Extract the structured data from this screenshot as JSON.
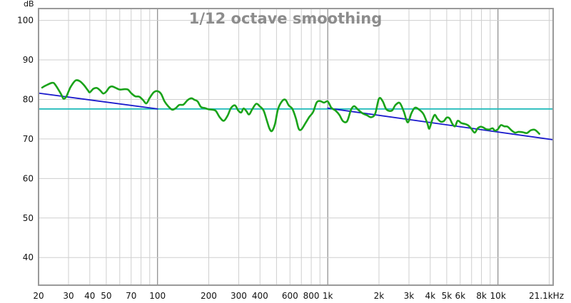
{
  "chart_data": {
    "type": "line",
    "title": "1/12 octave smoothing",
    "y_unit_label": "dB",
    "x_scale": "log",
    "xlim": [
      20,
      21100
    ],
    "ylim": [
      33,
      103
    ],
    "y_ticks": [
      40,
      50,
      60,
      70,
      80,
      90,
      100
    ],
    "x_ticks": [
      {
        "value": 20,
        "label": "20"
      },
      {
        "value": 30,
        "label": "30"
      },
      {
        "value": 40,
        "label": "40"
      },
      {
        "value": 50,
        "label": "50"
      },
      {
        "value": 70,
        "label": "70"
      },
      {
        "value": 100,
        "label": "100"
      },
      {
        "value": 200,
        "label": "200"
      },
      {
        "value": 300,
        "label": "300"
      },
      {
        "value": 400,
        "label": "400"
      },
      {
        "value": 600,
        "label": "600"
      },
      {
        "value": 800,
        "label": "800"
      },
      {
        "value": 1000,
        "label": "1k"
      },
      {
        "value": 2000,
        "label": "2k"
      },
      {
        "value": 3000,
        "label": "3k"
      },
      {
        "value": 4000,
        "label": "4k"
      },
      {
        "value": 5000,
        "label": "5k"
      },
      {
        "value": 6000,
        "label": "6k"
      },
      {
        "value": 8000,
        "label": "8k"
      },
      {
        "value": 10000,
        "label": "10k"
      },
      {
        "value": 21100,
        "label": "21.1kHz"
      }
    ],
    "grid": true,
    "series": [
      {
        "color": "#1aa31a",
        "points": [
          [
            21,
            83
          ],
          [
            22,
            83.5
          ],
          [
            24,
            84.2
          ],
          [
            25,
            83.8
          ],
          [
            27,
            81.5
          ],
          [
            28,
            80.2
          ],
          [
            29,
            80.6
          ],
          [
            30,
            82
          ],
          [
            31,
            83.3
          ],
          [
            33,
            84.8
          ],
          [
            35,
            84.6
          ],
          [
            37,
            83.6
          ],
          [
            39,
            82.3
          ],
          [
            40,
            81.8
          ],
          [
            42,
            82.7
          ],
          [
            44,
            82.9
          ],
          [
            46,
            82.3
          ],
          [
            48,
            81.5
          ],
          [
            50,
            82
          ],
          [
            52,
            83
          ],
          [
            54,
            83.3
          ],
          [
            57,
            82.9
          ],
          [
            60,
            82.5
          ],
          [
            64,
            82.6
          ],
          [
            67,
            82.5
          ],
          [
            70,
            81.6
          ],
          [
            74,
            80.8
          ],
          [
            78,
            80.7
          ],
          [
            82,
            79.9
          ],
          [
            86,
            79
          ],
          [
            90,
            80.4
          ],
          [
            95,
            81.8
          ],
          [
            100,
            82.1
          ],
          [
            105,
            81.4
          ],
          [
            110,
            79.5
          ],
          [
            116,
            78.2
          ],
          [
            122,
            77.4
          ],
          [
            128,
            77.8
          ],
          [
            134,
            78.6
          ],
          [
            142,
            78.7
          ],
          [
            150,
            79.8
          ],
          [
            158,
            80.3
          ],
          [
            165,
            79.9
          ],
          [
            172,
            79.5
          ],
          [
            180,
            78.1
          ],
          [
            190,
            77.8
          ],
          [
            200,
            77.5
          ],
          [
            210,
            77.4
          ],
          [
            220,
            77.1
          ],
          [
            232,
            75.5
          ],
          [
            245,
            74.6
          ],
          [
            258,
            75.9
          ],
          [
            270,
            77.8
          ],
          [
            285,
            78.5
          ],
          [
            298,
            77.2
          ],
          [
            310,
            76.7
          ],
          [
            320,
            77.7
          ],
          [
            332,
            77.1
          ],
          [
            345,
            76.2
          ],
          [
            360,
            77.5
          ],
          [
            380,
            78.9
          ],
          [
            400,
            78.2
          ],
          [
            420,
            77.2
          ],
          [
            440,
            74.5
          ],
          [
            455,
            72.6
          ],
          [
            470,
            72
          ],
          [
            490,
            73.8
          ],
          [
            510,
            77.5
          ],
          [
            540,
            79.6
          ],
          [
            565,
            79.9
          ],
          [
            590,
            78.5
          ],
          [
            620,
            77.6
          ],
          [
            650,
            75.2
          ],
          [
            675,
            72.6
          ],
          [
            700,
            72.4
          ],
          [
            740,
            74
          ],
          [
            780,
            75.6
          ],
          [
            820,
            76.8
          ],
          [
            860,
            79.2
          ],
          [
            900,
            79.6
          ],
          [
            950,
            79.2
          ],
          [
            1000,
            79.5
          ],
          [
            1050,
            77.9
          ],
          [
            1110,
            77.2
          ],
          [
            1170,
            76.1
          ],
          [
            1230,
            74.5
          ],
          [
            1300,
            74.5
          ],
          [
            1370,
            77.4
          ],
          [
            1430,
            78.3
          ],
          [
            1500,
            77.5
          ],
          [
            1600,
            76.5
          ],
          [
            1700,
            76
          ],
          [
            1800,
            75.5
          ],
          [
            1900,
            76.4
          ],
          [
            2000,
            80.2
          ],
          [
            2100,
            79.6
          ],
          [
            2200,
            77.6
          ],
          [
            2300,
            77.1
          ],
          [
            2400,
            77.3
          ],
          [
            2500,
            78.6
          ],
          [
            2650,
            79.1
          ],
          [
            2800,
            76.9
          ],
          [
            2950,
            74.2
          ],
          [
            3100,
            76.5
          ],
          [
            3250,
            77.9
          ],
          [
            3450,
            77.4
          ],
          [
            3650,
            76.3
          ],
          [
            3850,
            73.9
          ],
          [
            3950,
            72.6
          ],
          [
            4100,
            74.7
          ],
          [
            4250,
            76.1
          ],
          [
            4400,
            75.2
          ],
          [
            4600,
            74.4
          ],
          [
            4800,
            74.5
          ],
          [
            5000,
            75.4
          ],
          [
            5200,
            75.2
          ],
          [
            5400,
            73.8
          ],
          [
            5600,
            73.2
          ],
          [
            5800,
            74.6
          ],
          [
            6100,
            74
          ],
          [
            6400,
            73.8
          ],
          [
            6700,
            73.4
          ],
          [
            7000,
            72.5
          ],
          [
            7300,
            71.6
          ],
          [
            7600,
            72.7
          ],
          [
            7900,
            73.1
          ],
          [
            8200,
            72.9
          ],
          [
            8500,
            72.5
          ],
          [
            8900,
            72.4
          ],
          [
            9300,
            72.7
          ],
          [
            9600,
            72.1
          ],
          [
            10000,
            72.5
          ],
          [
            10400,
            73.5
          ],
          [
            10900,
            73.2
          ],
          [
            11400,
            73.1
          ],
          [
            12000,
            72.2
          ],
          [
            12600,
            71.6
          ],
          [
            13200,
            71.8
          ],
          [
            14000,
            71.7
          ],
          [
            14800,
            71.5
          ],
          [
            15600,
            72.2
          ],
          [
            16500,
            72.3
          ],
          [
            17500,
            71.3
          ]
        ]
      },
      {
        "color": "#1a1acc",
        "points": [
          [
            20,
            81.6
          ],
          [
            100,
            77.6
          ]
        ]
      },
      {
        "color": "#1a1acc",
        "points": [
          [
            1000,
            77.8
          ],
          [
            21100,
            69.8
          ]
        ]
      },
      {
        "color": "#22bbbb",
        "points": [
          [
            20,
            77.6
          ],
          [
            21100,
            77.6
          ]
        ]
      }
    ]
  }
}
